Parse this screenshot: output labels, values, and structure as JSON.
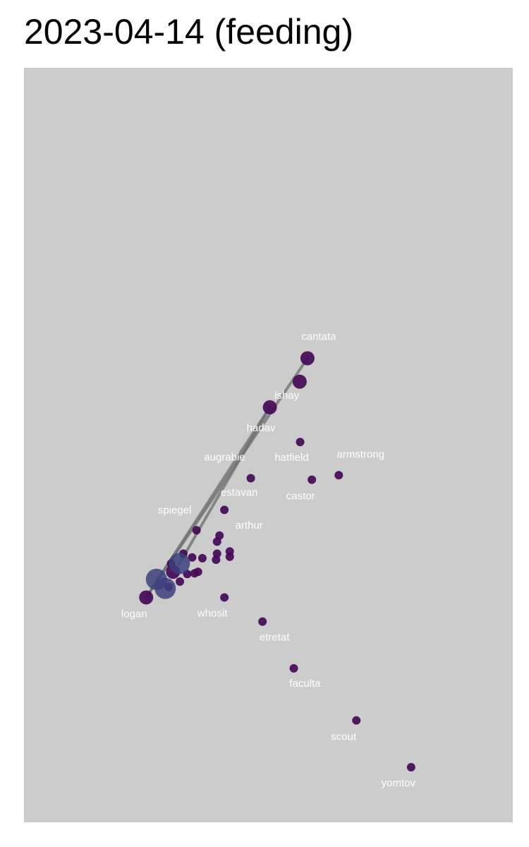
{
  "title": "2023-04-14 (feeding)",
  "chart_data": {
    "type": "scatter",
    "title": "2023-04-14 (feeding)",
    "xlabel": "",
    "ylabel": "",
    "xlim": [
      0,
      100
    ],
    "ylim": [
      0,
      100
    ],
    "grid": false,
    "colors": {
      "panel": "#cccccc",
      "node": "#440a57",
      "node_large": "#3b3f7d",
      "edge": "#6e6e6e",
      "label": "#ffffff"
    },
    "edges": [
      {
        "from": "cantata",
        "to": "logan"
      },
      {
        "from": "ishay",
        "to": "hub"
      },
      {
        "from": "ishay",
        "to": "logan"
      }
    ],
    "points": [
      {
        "id": "cantata",
        "label": "cantata",
        "x": 58.0,
        "y": 61.5,
        "size": 2
      },
      {
        "id": "mid1",
        "label": "",
        "x": 56.4,
        "y": 58.4,
        "size": 2
      },
      {
        "id": "ishay",
        "label": "ishay",
        "x": 50.3,
        "y": 55.0,
        "size": 2
      },
      {
        "id": "hatfield",
        "label": "hatfield",
        "x": 56.5,
        "y": 50.4,
        "size": 1
      },
      {
        "id": "armstrong",
        "label": "armstrong",
        "x": 64.4,
        "y": 46.0,
        "size": 1
      },
      {
        "id": "castor",
        "label": "castor",
        "x": 58.9,
        "y": 45.4,
        "size": 1
      },
      {
        "id": "augrabie",
        "label": "augrabie",
        "x": 46.4,
        "y": 45.6,
        "size": 1
      },
      {
        "id": "estavan",
        "label": "estavan",
        "x": 41.0,
        "y": 41.4,
        "size": 1
      },
      {
        "id": "spiegel",
        "label": "spiegel",
        "x": 35.3,
        "y": 38.7,
        "size": 1
      },
      {
        "id": "arthur",
        "label": "arthur",
        "x": 40.0,
        "y": 38.0,
        "size": 1
      },
      {
        "id": "c1",
        "label": "",
        "x": 39.5,
        "y": 37.2,
        "size": 1
      },
      {
        "id": "c2",
        "label": "",
        "x": 42.1,
        "y": 35.9,
        "size": 1
      },
      {
        "id": "c3",
        "label": "",
        "x": 42.1,
        "y": 35.2,
        "size": 1
      },
      {
        "id": "c4",
        "label": "",
        "x": 39.5,
        "y": 35.6,
        "size": 1
      },
      {
        "id": "c5",
        "label": "",
        "x": 39.3,
        "y": 34.8,
        "size": 1
      },
      {
        "id": "c6",
        "label": "",
        "x": 36.5,
        "y": 35.0,
        "size": 1
      },
      {
        "id": "c7",
        "label": "",
        "x": 34.4,
        "y": 35.1,
        "size": 1
      },
      {
        "id": "c8",
        "label": "",
        "x": 32.6,
        "y": 35.6,
        "size": 1
      },
      {
        "id": "c9",
        "label": "",
        "x": 30.1,
        "y": 34.3,
        "size": 1
      },
      {
        "id": "c10",
        "label": "",
        "x": 34.9,
        "y": 33.0,
        "size": 1
      },
      {
        "id": "c11",
        "label": "",
        "x": 35.6,
        "y": 33.2,
        "size": 1
      },
      {
        "id": "c12",
        "label": "",
        "x": 33.4,
        "y": 32.9,
        "size": 1
      },
      {
        "id": "c13",
        "label": "",
        "x": 31.9,
        "y": 31.9,
        "size": 1
      },
      {
        "id": "c14",
        "label": "",
        "x": 29.6,
        "y": 31.2,
        "size": 1
      },
      {
        "id": "hub",
        "label": "",
        "x": 31.8,
        "y": 34.3,
        "size": 3
      },
      {
        "id": "hub2",
        "label": "",
        "x": 27.1,
        "y": 32.2,
        "size": 3
      },
      {
        "id": "hub3",
        "label": "",
        "x": 28.9,
        "y": 31.0,
        "size": 3
      },
      {
        "id": "hub4",
        "label": "",
        "x": 30.5,
        "y": 33.2,
        "size": 2
      },
      {
        "id": "logan",
        "label": "logan",
        "x": 25.0,
        "y": 29.8,
        "size": 2
      },
      {
        "id": "whosit",
        "label": "whosit",
        "x": 41.0,
        "y": 29.8,
        "size": 1
      },
      {
        "id": "etretat",
        "label": "etretat",
        "x": 48.8,
        "y": 26.6,
        "size": 1
      },
      {
        "id": "faculta",
        "label": "faculta",
        "x": 55.2,
        "y": 20.4,
        "size": 1
      },
      {
        "id": "scout",
        "label": "scout",
        "x": 68.0,
        "y": 13.5,
        "size": 1
      },
      {
        "id": "yomtov",
        "label": "yomtov",
        "x": 79.2,
        "y": 7.3,
        "size": 1
      }
    ]
  }
}
